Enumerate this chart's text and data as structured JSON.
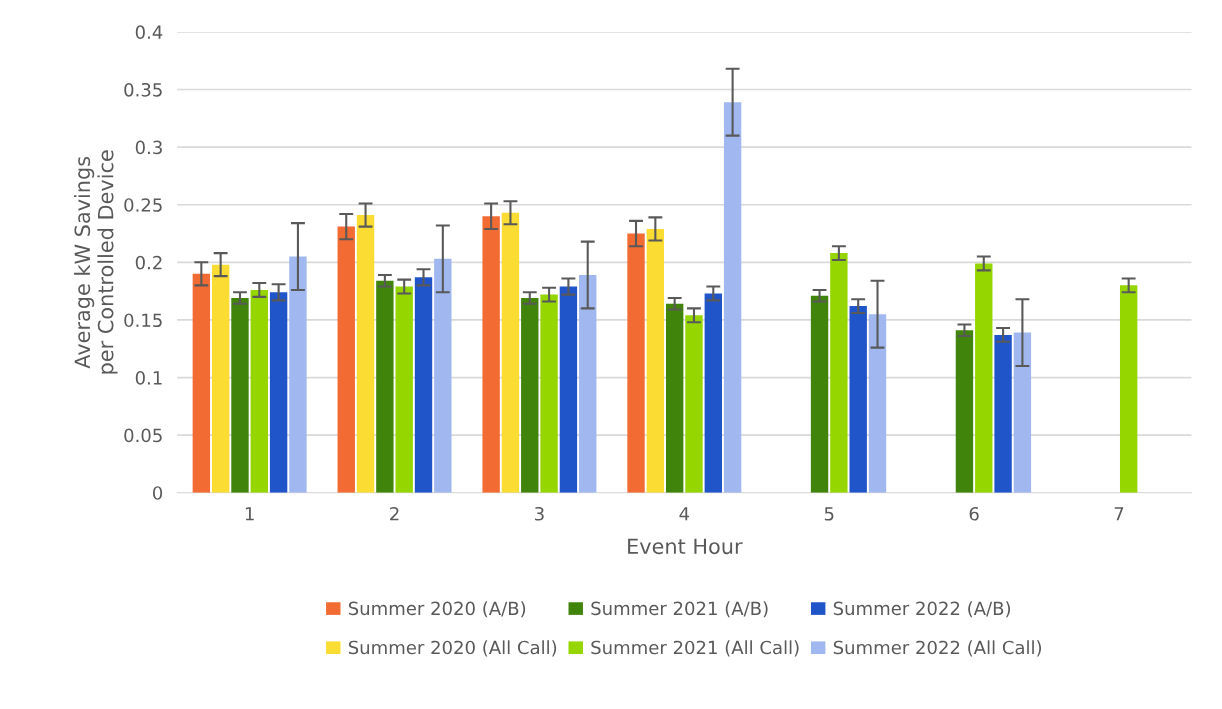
{
  "chart_data": {
    "type": "bar",
    "xlabel": "Event Hour",
    "ylabel": "Average kW Savings\nper Controlled Device",
    "categories": [
      "1",
      "2",
      "3",
      "4",
      "5",
      "6",
      "7"
    ],
    "ylim": [
      0,
      0.4
    ],
    "yticks": [
      {
        "value": 0,
        "label": "0"
      },
      0.05,
      0.1,
      0.15,
      0.2,
      0.25,
      0.3,
      0.35,
      0.4
    ],
    "grid": "y",
    "legend": "bottom",
    "series": [
      {
        "name": "Summer 2020 (A/B)",
        "color": "#f26b33",
        "values": [
          0.19,
          0.231,
          0.24,
          0.225,
          null,
          null,
          null
        ],
        "errors": [
          0.01,
          0.011,
          0.011,
          0.011,
          null,
          null,
          null
        ]
      },
      {
        "name": "Summer 2020 (All Call)",
        "color": "#fbdc33",
        "values": [
          0.198,
          0.241,
          0.243,
          0.229,
          null,
          null,
          null
        ],
        "errors": [
          0.01,
          0.01,
          0.01,
          0.01,
          null,
          null,
          null
        ]
      },
      {
        "name": "Summer 2021 (A/B)",
        "color": "#41840c",
        "values": [
          0.169,
          0.184,
          0.169,
          0.164,
          0.171,
          0.141,
          null
        ],
        "errors": [
          0.005,
          0.005,
          0.005,
          0.005,
          0.005,
          0.005,
          null
        ]
      },
      {
        "name": "Summer 2021 (All Call)",
        "color": "#95d600",
        "values": [
          0.176,
          0.179,
          0.172,
          0.154,
          0.208,
          0.199,
          0.18
        ],
        "errors": [
          0.006,
          0.006,
          0.006,
          0.006,
          0.006,
          0.006,
          0.006
        ]
      },
      {
        "name": "Summer 2022 (A/B)",
        "color": "#1f55c9",
        "values": [
          0.174,
          0.187,
          0.179,
          0.173,
          0.162,
          0.137,
          null
        ],
        "errors": [
          0.007,
          0.007,
          0.007,
          0.006,
          0.006,
          0.006,
          null
        ]
      },
      {
        "name": "Summer 2022 (All Call)",
        "color": "#a0b8ef",
        "values": [
          0.205,
          0.203,
          0.189,
          0.339,
          0.155,
          0.139,
          null
        ],
        "errors": [
          0.029,
          0.029,
          0.029,
          0.029,
          0.029,
          0.029,
          null
        ]
      }
    ]
  }
}
